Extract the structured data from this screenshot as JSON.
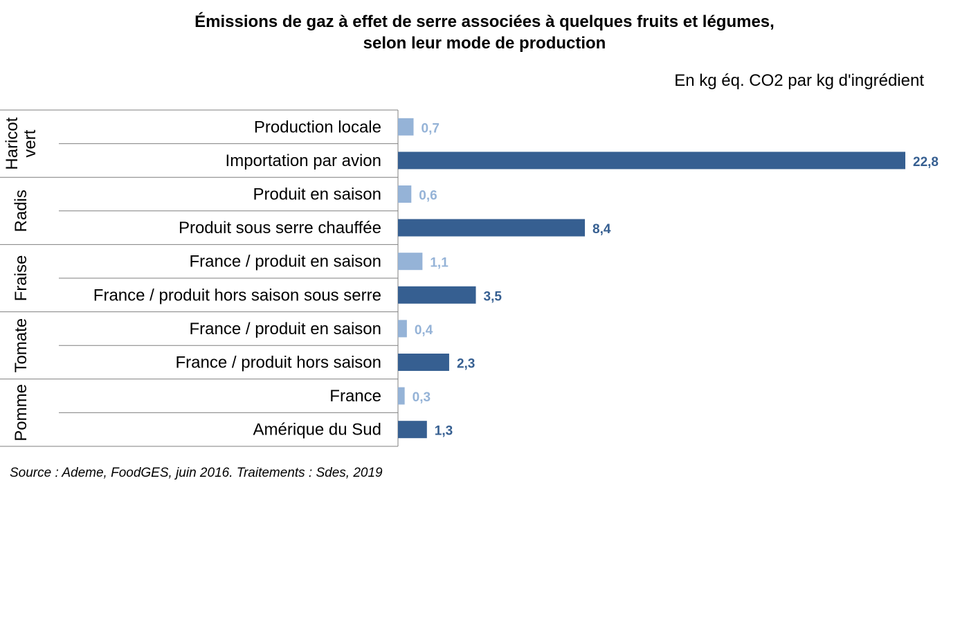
{
  "title_line1": "Émissions de gaz à effet de serre associées à quelques fruits et légumes,",
  "title_line2": "selon leur mode de production",
  "unit_label": "En kg éq. CO2 par kg d'ingrédient",
  "source": "Source : Ademe, FoodGES, juin 2016. Traitements : Sdes, 2019",
  "colors": {
    "light": "#95b3d7",
    "dark": "#365f91",
    "lines": "#7f7f7f"
  },
  "chart_data": {
    "type": "bar",
    "orientation": "horizontal",
    "xlim": [
      0,
      22.8
    ],
    "grid": false,
    "groups": [
      {
        "name": "Haricot vert",
        "items": [
          {
            "label": "Production locale",
            "value": 0.7,
            "value_label": "0,7",
            "shade": "light"
          },
          {
            "label": "Importation par avion",
            "value": 22.8,
            "value_label": "22,8",
            "shade": "dark"
          }
        ]
      },
      {
        "name": "Radis",
        "items": [
          {
            "label": "Produit en saison",
            "value": 0.6,
            "value_label": "0,6",
            "shade": "light"
          },
          {
            "label": "Produit sous serre chauffée",
            "value": 8.4,
            "value_label": "8,4",
            "shade": "dark"
          }
        ]
      },
      {
        "name": "Fraise",
        "items": [
          {
            "label": "France / produit en saison",
            "value": 1.1,
            "value_label": "1,1",
            "shade": "light"
          },
          {
            "label": "France / produit hors saison sous serre",
            "value": 3.5,
            "value_label": "3,5",
            "shade": "dark"
          }
        ]
      },
      {
        "name": "Tomate",
        "items": [
          {
            "label": "France / produit en saison",
            "value": 0.4,
            "value_label": "0,4",
            "shade": "light"
          },
          {
            "label": "France / produit hors saison",
            "value": 2.3,
            "value_label": "2,3",
            "shade": "dark"
          }
        ]
      },
      {
        "name": "Pomme",
        "items": [
          {
            "label": "France",
            "value": 0.3,
            "value_label": "0,3",
            "shade": "light"
          },
          {
            "label": "Amérique du Sud",
            "value": 1.3,
            "value_label": "1,3",
            "shade": "dark"
          }
        ]
      }
    ]
  }
}
